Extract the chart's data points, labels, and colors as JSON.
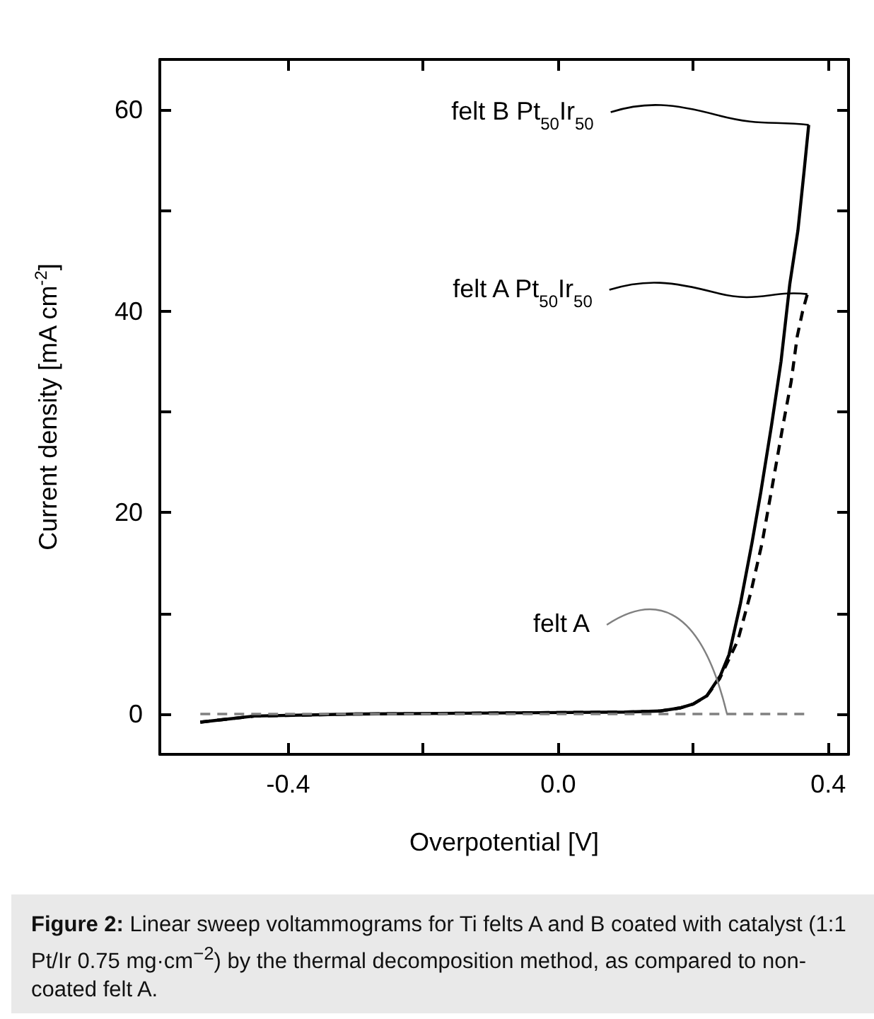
{
  "chart_data": {
    "type": "line",
    "xlabel": "Overpotential [V]",
    "ylabel": "Current density [mA cm$^{-2}$]",
    "xlim": [
      -0.59,
      0.43
    ],
    "ylim": [
      -4,
      65
    ],
    "xticks": [
      -0.4,
      {
        "value": -0.2,
        "label": null
      },
      {
        "value": 0,
        "label": "0.0"
      },
      {
        "value": 0.2,
        "label": null
      },
      0.4
    ],
    "yticks": [
      0,
      {
        "value": 10,
        "label": null
      },
      20,
      {
        "value": 30,
        "label": null
      },
      40,
      {
        "value": 50,
        "label": null
      },
      60
    ],
    "grid": false,
    "marker": "none",
    "series": [
      {
        "color": "#000000",
        "line_style": "solid",
        "x": [
          -0.53,
          -0.45,
          -0.3,
          -0.1,
          0.1,
          0.15,
          0.18,
          0.2,
          0.22,
          0.24,
          0.253,
          0.27,
          0.287,
          0.3,
          0.316,
          0.33,
          0.343,
          0.355,
          0.364,
          0.371
        ],
        "values": [
          -0.8,
          -0.2,
          0,
          0.1,
          0.2,
          0.3,
          0.6,
          1.0,
          1.8,
          3.8,
          5.9,
          11,
          17,
          22,
          28.7,
          35,
          42.7,
          48,
          53.8,
          58.5
        ]
      },
      {
        "color": "#000000",
        "line_style": "dashed",
        "x": [
          -0.53,
          -0.45,
          -0.3,
          -0.1,
          0.1,
          0.15,
          0.18,
          0.2,
          0.22,
          0.239,
          0.266,
          0.285,
          0.302,
          0.318,
          0.333,
          0.345,
          0.354,
          0.362,
          0.369
        ],
        "values": [
          -0.8,
          -0.2,
          0,
          0.1,
          0.2,
          0.3,
          0.6,
          1.0,
          1.8,
          3.5,
          7.3,
          12,
          17,
          23,
          28.7,
          33,
          37.5,
          40,
          41.7
        ]
      },
      {
        "color": "#808080",
        "line_style": "dashed",
        "x": [
          -0.53,
          0.37
        ],
        "values": [
          0,
          0
        ]
      }
    ],
    "annotations": [
      {
        "text": "felt B Pt$_{50}$Ir$_{50}$",
        "x": 0.371,
        "y": 58.5
      },
      {
        "text": "felt A Pt$_{50}$Ir$_{50}$",
        "x": 0.369,
        "y": 41.7
      },
      {
        "text": "felt A",
        "x": 0.25,
        "y": 0
      },
      "Figure 2: Linear sweep voltammograms for Ti felts A and B coated with catalyst (1:1 Pt/Ir 0.75 mg·cm$^{−2}$) by the thermal decomposition method, as compared to non-coated felt A."
    ]
  }
}
